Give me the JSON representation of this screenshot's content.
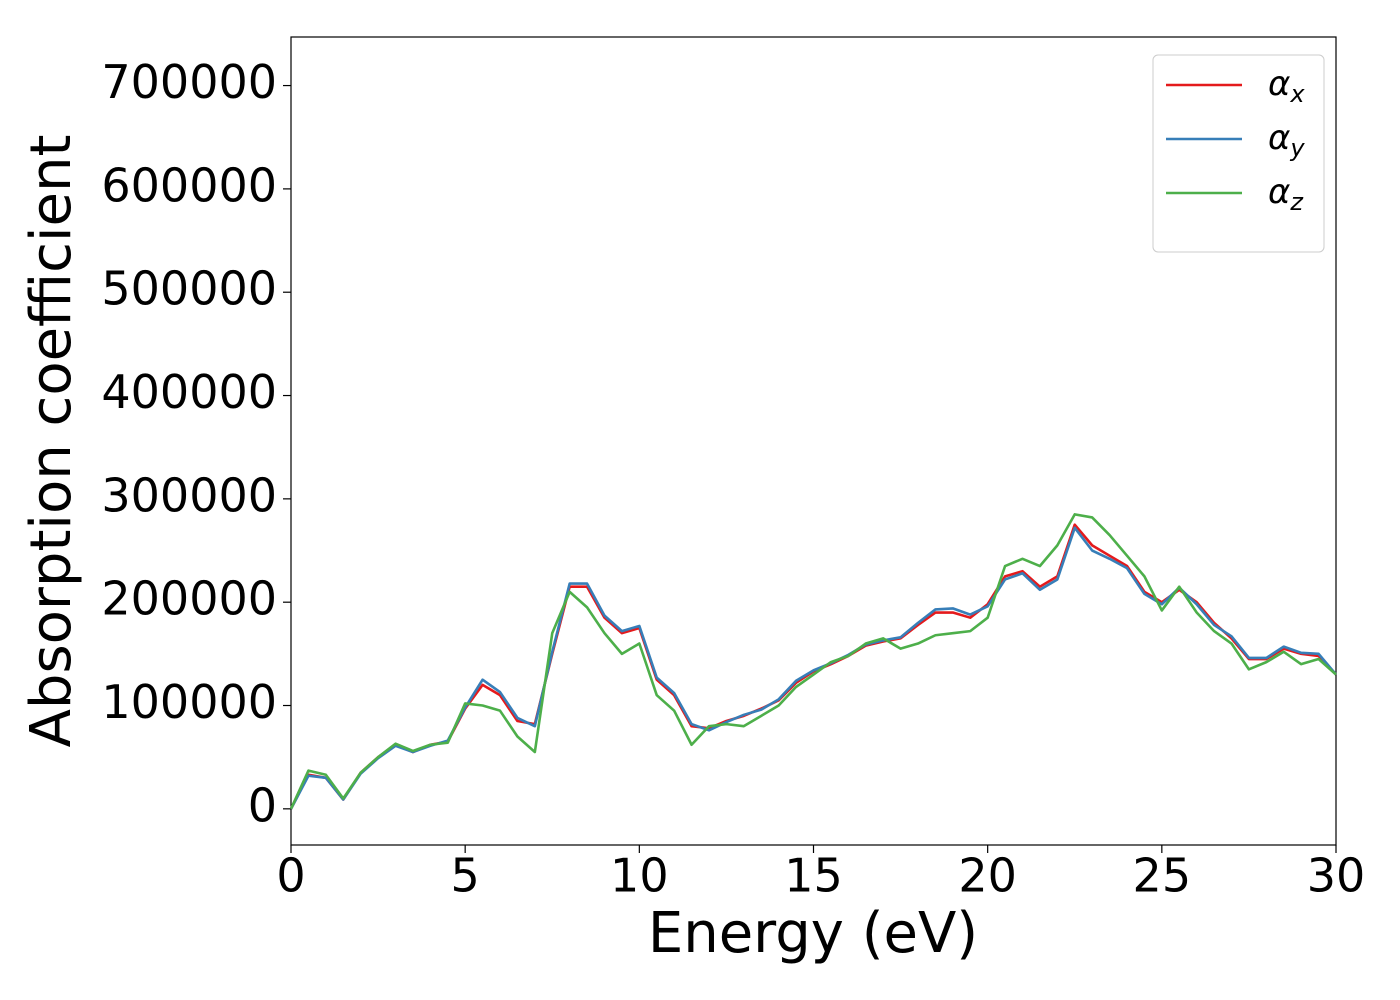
{
  "chart_data": {
    "type": "line",
    "xlabel": "Energy (eV)",
    "ylabel": "Absorption coefficient",
    "x": [
      0,
      0.5,
      1,
      1.5,
      2,
      2.5,
      3,
      3.5,
      4,
      4.5,
      5,
      5.5,
      6,
      6.5,
      7,
      7.5,
      8,
      8.5,
      9,
      9.5,
      10,
      10.5,
      11,
      11.5,
      12,
      12.5,
      13,
      13.5,
      14,
      14.5,
      15,
      15.5,
      16,
      16.5,
      17,
      17.5,
      18,
      18.5,
      19,
      19.5,
      20,
      20.5,
      21,
      21.5,
      22,
      22.5,
      23,
      23.5,
      24,
      24.5,
      25,
      25.5,
      26,
      26.5,
      27,
      27.5,
      28,
      28.5,
      29,
      29.5,
      30
    ],
    "series": [
      {
        "name": "αx",
        "color": "#e41a1c",
        "values": [
          0,
          33000,
          30000,
          9000,
          35000,
          50000,
          62000,
          55000,
          62000,
          65000,
          97000,
          120000,
          110000,
          85000,
          82000,
          150000,
          215000,
          215000,
          185000,
          170000,
          175000,
          125000,
          110000,
          80000,
          78000,
          85000,
          90000,
          97000,
          105000,
          122000,
          133000,
          140000,
          148000,
          158000,
          162000,
          165000,
          178000,
          190000,
          190000,
          185000,
          198000,
          225000,
          230000,
          215000,
          225000,
          275000,
          255000,
          245000,
          235000,
          210000,
          200000,
          212000,
          200000,
          180000,
          165000,
          145000,
          145000,
          155000,
          150000,
          148000,
          130000
        ]
      },
      {
        "name": "αy",
        "color": "#377eb8",
        "values": [
          0,
          32000,
          30000,
          9000,
          34000,
          49000,
          61000,
          55000,
          61000,
          66000,
          98000,
          125000,
          113000,
          88000,
          80000,
          152000,
          218000,
          218000,
          187000,
          172000,
          177000,
          127000,
          112000,
          82000,
          76000,
          84000,
          91000,
          96000,
          106000,
          124000,
          134000,
          141000,
          149000,
          159000,
          163000,
          166000,
          180000,
          193000,
          194000,
          188000,
          196000,
          222000,
          228000,
          212000,
          222000,
          272000,
          250000,
          242000,
          233000,
          208000,
          198000,
          214000,
          198000,
          178000,
          167000,
          146000,
          146000,
          157000,
          151000,
          150000,
          130000
        ]
      },
      {
        "name": "αz",
        "color": "#4daf4a",
        "values": [
          0,
          37000,
          33000,
          10000,
          35000,
          50000,
          63000,
          56000,
          62000,
          64000,
          102000,
          100000,
          95000,
          70000,
          55000,
          170000,
          210000,
          195000,
          170000,
          150000,
          160000,
          110000,
          95000,
          62000,
          80000,
          82000,
          80000,
          90000,
          100000,
          118000,
          130000,
          142000,
          148000,
          160000,
          165000,
          155000,
          160000,
          168000,
          170000,
          172000,
          185000,
          235000,
          242000,
          235000,
          255000,
          285000,
          282000,
          265000,
          245000,
          225000,
          192000,
          215000,
          190000,
          172000,
          160000,
          135000,
          142000,
          152000,
          140000,
          145000,
          130000
        ]
      }
    ],
    "xlim": [
      0,
      30
    ],
    "xticks": [
      0,
      5,
      10,
      15,
      20,
      25,
      30
    ],
    "ylim": [
      -35000,
      747000
    ],
    "yticks": [
      0,
      100000,
      200000,
      300000,
      400000,
      500000,
      600000,
      700000
    ],
    "grid": false,
    "legend": "upper right"
  }
}
